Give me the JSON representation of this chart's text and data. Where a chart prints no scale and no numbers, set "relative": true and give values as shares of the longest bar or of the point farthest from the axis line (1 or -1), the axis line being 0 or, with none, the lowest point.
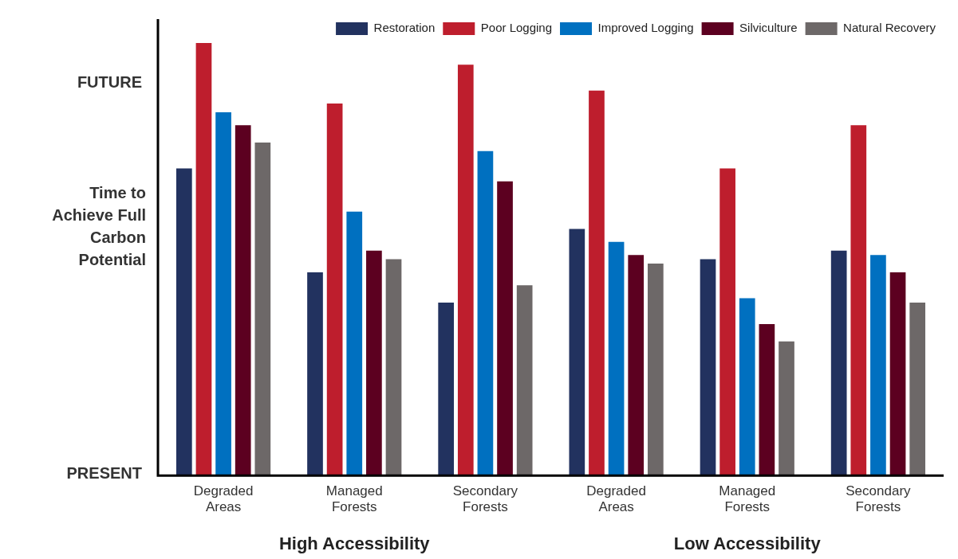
{
  "chart_data": {
    "type": "bar",
    "relative": true,
    "ylabel": "Time to Achieve Full Carbon Potential",
    "categories": [
      "Degraded Areas",
      "Managed Forests",
      "Secondary Forests",
      "Degraded Areas",
      "Managed Forests",
      "Secondary Forests"
    ],
    "series": [
      {
        "name": "Restoration",
        "color": "#22325f",
        "values": [
          0.71,
          0.47,
          0.4,
          0.57,
          0.5,
          0.52
        ]
      },
      {
        "name": "Poor Logging",
        "color": "#be1e2d",
        "values": [
          1.0,
          0.86,
          0.95,
          0.89,
          0.71,
          0.81
        ]
      },
      {
        "name": "Improved Logging",
        "color": "#0070c0",
        "values": [
          0.84,
          0.61,
          0.75,
          0.54,
          0.41,
          0.51
        ]
      },
      {
        "name": "Silviculture",
        "color": "#5c0020",
        "values": [
          0.81,
          0.52,
          0.68,
          0.51,
          0.35,
          0.47
        ]
      },
      {
        "name": "Natural Recovery",
        "color": "#6d6868",
        "values": [
          0.77,
          0.5,
          0.44,
          0.49,
          0.31,
          0.4
        ]
      }
    ],
    "annotations": [
      "PRESENT",
      "FUTURE",
      "High Accessibility",
      "Low Accessibility"
    ],
    "legend": "top right",
    "grid": false
  }
}
